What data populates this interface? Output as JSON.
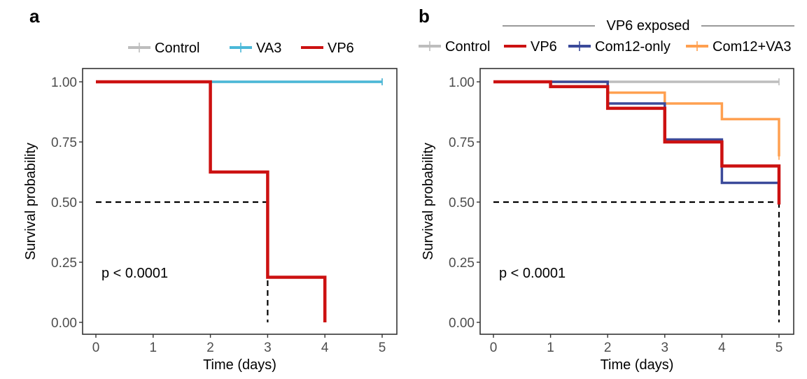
{
  "chart_data": [
    {
      "panel_label": "a",
      "type": "line",
      "subtype": "kaplan-meier step",
      "xlabel": "Time (days)",
      "ylabel": "Survival probability",
      "xlim": [
        0,
        5
      ],
      "ylim": [
        0,
        1
      ],
      "xticks": [
        "0",
        "1",
        "2",
        "3",
        "4",
        "5"
      ],
      "yticks": [
        "0.00",
        "0.25",
        "0.50",
        "0.75",
        "1.00"
      ],
      "legend_placement": "top",
      "annotation": "p < 0.0001",
      "median_line": {
        "y": 0.5,
        "x": 3
      },
      "series": [
        {
          "name": "Control",
          "color": "#bdbdbd",
          "steps": [
            [
              0,
              1.0
            ],
            [
              5,
              1.0
            ]
          ],
          "censor": [
            5
          ]
        },
        {
          "name": "VA3",
          "color": "#4ab8d8",
          "steps": [
            [
              0,
              1.0
            ],
            [
              5,
              1.0
            ]
          ],
          "censor": [
            5
          ]
        },
        {
          "name": "VP6",
          "color": "#cc1111",
          "steps": [
            [
              0,
              1.0
            ],
            [
              2,
              0.625
            ],
            [
              3,
              0.1875
            ],
            [
              4,
              0.0
            ]
          ],
          "censor": []
        }
      ]
    },
    {
      "panel_label": "b",
      "type": "line",
      "subtype": "kaplan-meier step",
      "header": "VP6 exposed",
      "xlabel": "Time (days)",
      "ylabel": "Survival probability",
      "xlim": [
        0,
        5
      ],
      "ylim": [
        0,
        1
      ],
      "xticks": [
        "0",
        "1",
        "2",
        "3",
        "4",
        "5"
      ],
      "yticks": [
        "0.00",
        "0.25",
        "0.50",
        "0.75",
        "1.00"
      ],
      "legend_placement": "top",
      "annotation": "p < 0.0001",
      "median_line": {
        "y": 0.5,
        "x": 5
      },
      "series": [
        {
          "name": "Control",
          "color": "#bdbdbd",
          "steps": [
            [
              0,
              1.0
            ],
            [
              5,
              1.0
            ]
          ],
          "censor": [
            5
          ]
        },
        {
          "name": "Com12+VA3",
          "color": "#ffa050",
          "steps": [
            [
              0,
              1.0
            ],
            [
              2,
              0.955
            ],
            [
              3,
              0.91
            ],
            [
              4,
              0.845
            ],
            [
              5,
              0.69
            ]
          ],
          "censor": [
            5
          ]
        },
        {
          "name": "Com12-only",
          "color": "#3b4a9a",
          "steps": [
            [
              0,
              1.0
            ],
            [
              2,
              0.91
            ],
            [
              3,
              0.76
            ],
            [
              4,
              0.58
            ],
            [
              5,
              0.58
            ]
          ],
          "censor": [
            5
          ]
        },
        {
          "name": "VP6",
          "color": "#cc1111",
          "steps": [
            [
              0,
              1.0
            ],
            [
              1,
              0.98
            ],
            [
              2,
              0.89
            ],
            [
              3,
              0.75
            ],
            [
              4,
              0.65
            ],
            [
              5,
              0.49
            ]
          ],
          "censor": []
        }
      ],
      "legend_order": [
        "Control",
        "VP6",
        "Com12-only",
        "Com12+VA3"
      ]
    }
  ]
}
